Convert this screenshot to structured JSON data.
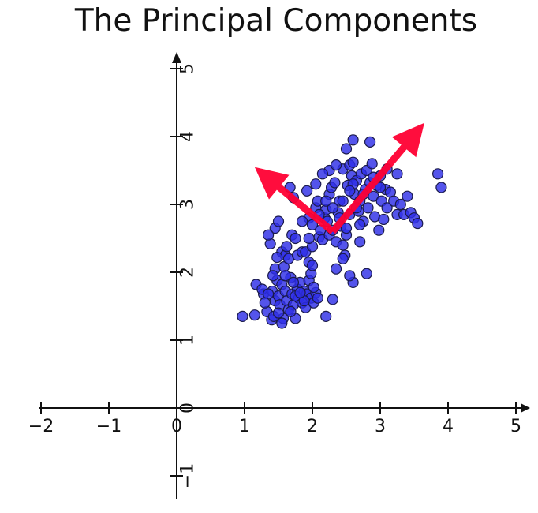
{
  "chart_data": {
    "type": "scatter",
    "title": "The Principal Components",
    "xlabel": "",
    "ylabel": "",
    "xlim": [
      -2,
      5
    ],
    "ylim": [
      -1.3,
      5.2
    ],
    "x_ticks": [
      "−2",
      "−1",
      "0",
      "1",
      "2",
      "3",
      "4",
      "5"
    ],
    "x_tick_values": [
      -2,
      -1,
      0,
      1,
      2,
      3,
      4,
      5
    ],
    "y_ticks": [
      "−1",
      "0",
      "1",
      "2",
      "3",
      "4",
      "5"
    ],
    "y_tick_values": [
      -1,
      0,
      1,
      2,
      3,
      4,
      5
    ],
    "spines": "centered at origin with arrowheads",
    "grid": false,
    "colors": {
      "points": "#2e2ee6",
      "point_edge": "#1a1a4a",
      "arrows": "#ff0033",
      "axes": "#111111"
    },
    "series": [
      {
        "points": [
          [
            0.97,
            1.35
          ],
          [
            1.15,
            1.37
          ],
          [
            1.17,
            1.82
          ],
          [
            1.28,
            1.68
          ],
          [
            1.33,
            1.42
          ],
          [
            1.4,
            1.3
          ],
          [
            1.43,
            1.35
          ],
          [
            1.41,
            1.72
          ],
          [
            1.45,
            1.58
          ],
          [
            1.48,
            1.88
          ],
          [
            1.5,
            1.65
          ],
          [
            1.52,
            1.52
          ],
          [
            1.55,
            1.82
          ],
          [
            1.57,
            1.32
          ],
          [
            1.6,
            1.72
          ],
          [
            1.62,
            1.58
          ],
          [
            1.65,
            1.45
          ],
          [
            1.68,
            1.92
          ],
          [
            1.7,
            1.68
          ],
          [
            1.72,
            1.52
          ],
          [
            1.75,
            1.32
          ],
          [
            1.78,
            1.75
          ],
          [
            1.8,
            1.62
          ],
          [
            1.82,
            1.85
          ],
          [
            1.85,
            1.55
          ],
          [
            1.88,
            1.72
          ],
          [
            1.9,
            1.48
          ],
          [
            1.92,
            1.68
          ],
          [
            1.95,
            1.88
          ],
          [
            1.98,
            1.62
          ],
          [
            2.02,
            1.55
          ],
          [
            2.05,
            1.7
          ],
          [
            1.26,
            1.75
          ],
          [
            1.35,
            1.68
          ],
          [
            1.45,
            2.05
          ],
          [
            1.58,
            2.08
          ],
          [
            1.38,
            2.42
          ],
          [
            1.45,
            2.65
          ],
          [
            1.5,
            2.75
          ],
          [
            1.55,
            2.3
          ],
          [
            1.6,
            2.25
          ],
          [
            1.65,
            2.2
          ],
          [
            1.7,
            2.55
          ],
          [
            1.72,
            3.1
          ],
          [
            1.75,
            2.5
          ],
          [
            1.78,
            2.25
          ],
          [
            1.85,
            2.3
          ],
          [
            1.9,
            2.3
          ],
          [
            1.67,
            3.25
          ],
          [
            1.95,
            2.15
          ],
          [
            1.98,
            1.98
          ],
          [
            2.0,
            2.1
          ],
          [
            1.95,
            2.8
          ],
          [
            2.0,
            2.7
          ],
          [
            2.05,
            2.95
          ],
          [
            2.08,
            3.05
          ],
          [
            2.1,
            2.52
          ],
          [
            2.12,
            2.62
          ],
          [
            2.15,
            2.48
          ],
          [
            2.18,
            2.8
          ],
          [
            2.2,
            2.92
          ],
          [
            2.22,
            2.75
          ],
          [
            2.25,
            2.55
          ],
          [
            2.25,
            3.15
          ],
          [
            2.28,
            3.25
          ],
          [
            2.3,
            2.62
          ],
          [
            2.33,
            3.32
          ],
          [
            2.35,
            2.45
          ],
          [
            2.38,
            2.88
          ],
          [
            2.4,
            3.05
          ],
          [
            2.42,
            2.68
          ],
          [
            2.45,
            2.4
          ],
          [
            2.45,
            3.52
          ],
          [
            2.48,
            2.25
          ],
          [
            2.5,
            2.55
          ],
          [
            2.52,
            3.28
          ],
          [
            2.55,
            3.58
          ],
          [
            2.55,
            2.85
          ],
          [
            2.58,
            3.42
          ],
          [
            2.6,
            3.62
          ],
          [
            2.62,
            3.15
          ],
          [
            2.65,
            3.35
          ],
          [
            2.68,
            2.9
          ],
          [
            2.7,
            3.05
          ],
          [
            2.72,
            3.45
          ],
          [
            2.75,
            2.75
          ],
          [
            2.78,
            3.22
          ],
          [
            2.8,
            3.5
          ],
          [
            2.82,
            2.95
          ],
          [
            2.85,
            3.32
          ],
          [
            2.88,
            3.6
          ],
          [
            2.9,
            3.12
          ],
          [
            2.92,
            2.82
          ],
          [
            2.95,
            3.28
          ],
          [
            2.98,
            2.62
          ],
          [
            3.0,
            3.42
          ],
          [
            3.02,
            3.05
          ],
          [
            3.05,
            2.78
          ],
          [
            3.08,
            3.22
          ],
          [
            3.1,
            2.95
          ],
          [
            3.15,
            3.18
          ],
          [
            3.2,
            3.05
          ],
          [
            3.25,
            2.85
          ],
          [
            3.3,
            3.0
          ],
          [
            3.35,
            2.85
          ],
          [
            3.4,
            3.12
          ],
          [
            3.45,
            2.88
          ],
          [
            3.5,
            2.8
          ],
          [
            3.55,
            2.72
          ],
          [
            3.1,
            3.52
          ],
          [
            3.25,
            3.45
          ],
          [
            2.25,
            3.5
          ],
          [
            2.35,
            3.58
          ],
          [
            2.5,
            3.82
          ],
          [
            2.6,
            3.95
          ],
          [
            2.85,
            3.92
          ],
          [
            3.85,
            3.45
          ],
          [
            3.9,
            3.25
          ],
          [
            2.6,
            1.85
          ],
          [
            2.8,
            1.98
          ],
          [
            2.55,
            1.95
          ],
          [
            2.3,
            1.6
          ],
          [
            2.45,
            2.2
          ],
          [
            2.2,
            1.35
          ],
          [
            2.35,
            2.05
          ],
          [
            2.0,
            2.38
          ],
          [
            2.7,
            2.45
          ],
          [
            2.15,
            3.45
          ],
          [
            2.05,
            3.3
          ],
          [
            2.4,
            2.8
          ],
          [
            2.5,
            2.65
          ],
          [
            2.65,
            2.95
          ],
          [
            2.75,
            3.15
          ],
          [
            3.0,
            3.25
          ],
          [
            2.9,
            3.4
          ],
          [
            2.45,
            3.05
          ],
          [
            2.6,
            3.3
          ],
          [
            2.7,
            2.7
          ],
          [
            2.3,
            2.95
          ],
          [
            1.85,
            2.75
          ],
          [
            2.1,
            2.85
          ],
          [
            2.2,
            3.05
          ],
          [
            2.55,
            3.2
          ],
          [
            1.92,
            3.2
          ],
          [
            1.5,
            1.4
          ],
          [
            1.75,
            1.65
          ],
          [
            1.6,
            1.95
          ],
          [
            1.42,
            1.95
          ],
          [
            1.3,
            1.55
          ],
          [
            1.68,
            1.42
          ],
          [
            2.08,
            1.62
          ],
          [
            1.88,
            1.58
          ],
          [
            1.55,
            1.25
          ],
          [
            1.72,
            1.85
          ],
          [
            1.82,
            1.7
          ],
          [
            2.02,
            1.78
          ],
          [
            1.48,
            2.22
          ],
          [
            1.62,
            2.38
          ],
          [
            1.35,
            2.55
          ],
          [
            1.95,
            2.5
          ]
        ]
      }
    ],
    "arrows": [
      {
        "from": [
          2.3,
          2.6
        ],
        "to": [
          3.65,
          4.2
        ]
      },
      {
        "from": [
          2.3,
          2.6
        ],
        "to": [
          1.15,
          3.55
        ]
      }
    ]
  }
}
